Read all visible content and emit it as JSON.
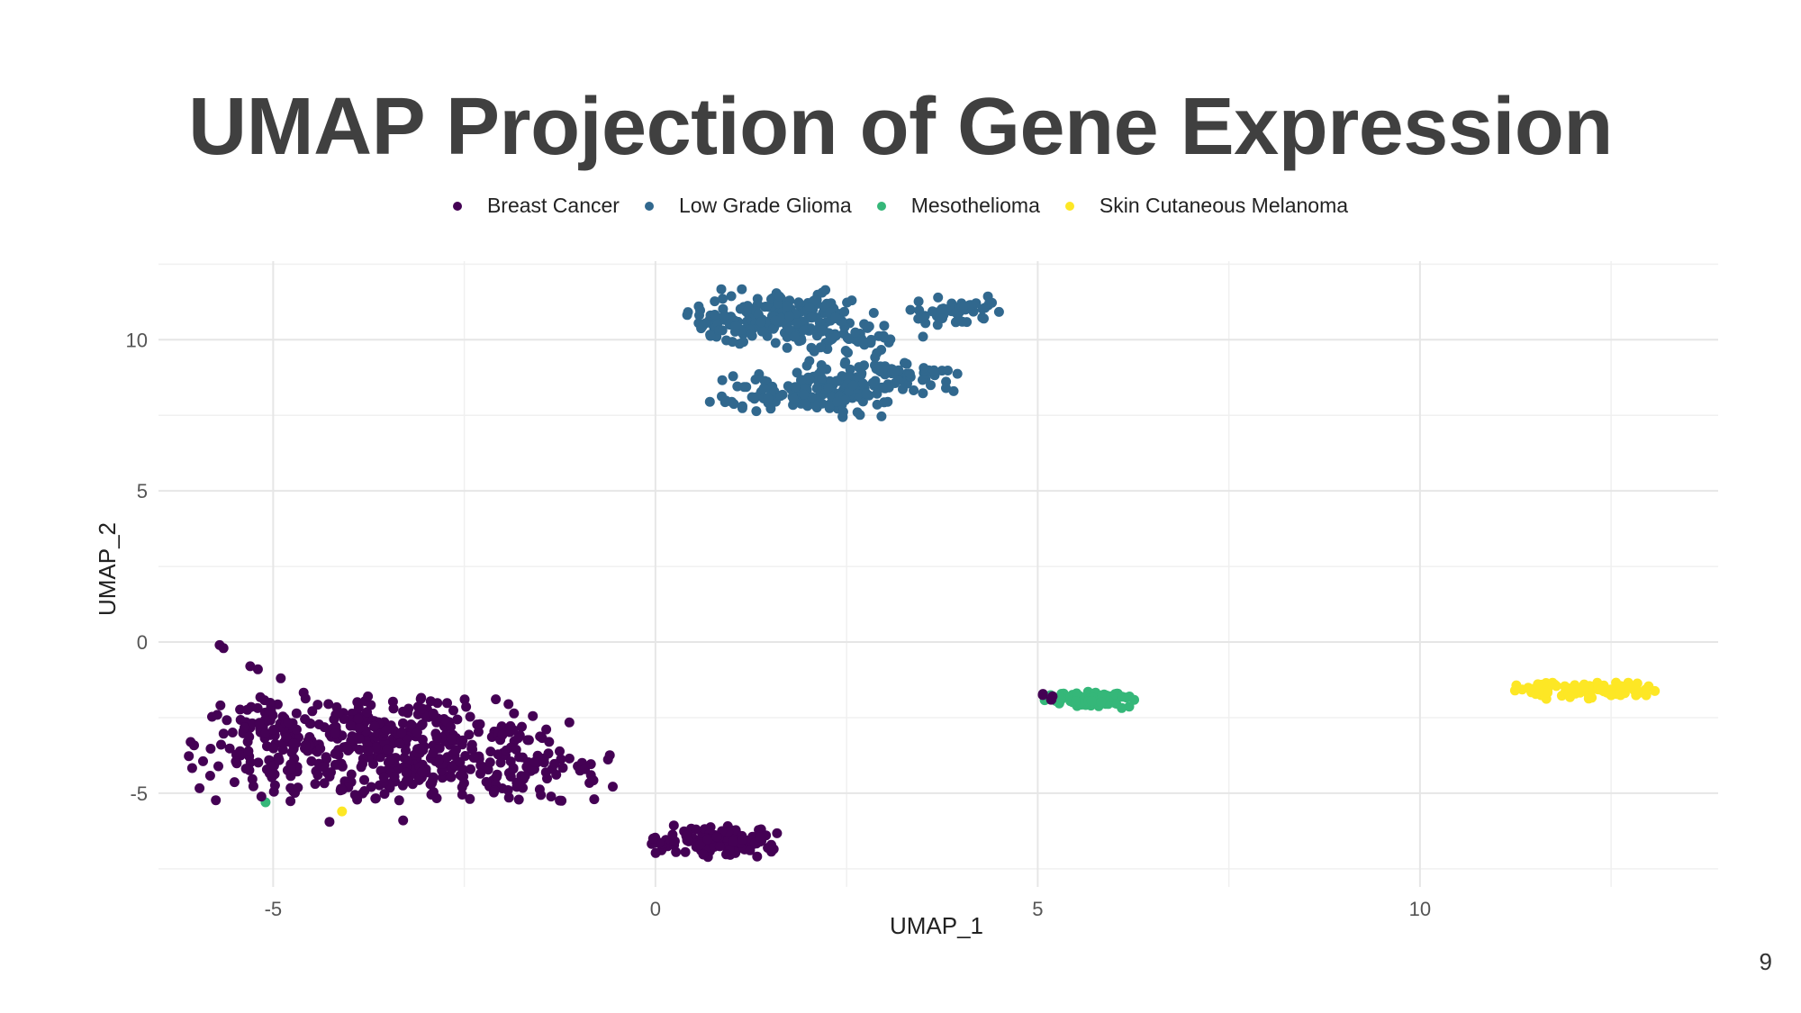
{
  "slide": {
    "title": "UMAP Projection of Gene Expression",
    "page_number": "9"
  },
  "chart_data": {
    "type": "scatter",
    "xlabel": "UMAP_1",
    "ylabel": "UMAP_2",
    "xlim": [
      -6.5,
      13.9
    ],
    "ylim": [
      -8.1,
      12.6
    ],
    "xticks": [
      -5,
      0,
      5,
      10
    ],
    "yticks": [
      -5,
      0,
      5,
      10
    ],
    "grid": true,
    "legend_position": "top",
    "series": [
      {
        "name": "Breast Cancer",
        "color": "#440154",
        "clusters": [
          {
            "cx": -3.6,
            "cy": -3.5,
            "sx": 1.15,
            "sy": 0.85,
            "n": 520
          },
          {
            "cx": -1.4,
            "cy": -4.5,
            "sx": 0.4,
            "sy": 0.35,
            "n": 45
          },
          {
            "cx": -5.0,
            "cy": -2.7,
            "sx": 0.25,
            "sy": 0.25,
            "n": 25
          },
          {
            "cx": 0.8,
            "cy": -6.6,
            "sx": 0.4,
            "sy": 0.25,
            "n": 130
          },
          {
            "cx": 5.1,
            "cy": -1.8,
            "sx": 0.05,
            "sy": 0.08,
            "n": 5
          }
        ],
        "points": [
          {
            "x": -5.7,
            "y": -0.1
          },
          {
            "x": -5.65,
            "y": -0.2
          },
          {
            "x": -5.3,
            "y": -0.8
          },
          {
            "x": -5.2,
            "y": -0.9
          },
          {
            "x": -4.9,
            "y": -1.2
          },
          {
            "x": -0.8,
            "y": -5.2
          },
          {
            "x": -3.3,
            "y": -5.9
          }
        ]
      },
      {
        "name": "Low Grade Glioma",
        "color": "#31688e",
        "clusters": [
          {
            "cx": 1.5,
            "cy": 10.7,
            "sx": 0.5,
            "sy": 0.45,
            "n": 180
          },
          {
            "cx": 2.3,
            "cy": 10.6,
            "sx": 0.4,
            "sy": 0.45,
            "n": 60
          },
          {
            "cx": 1.9,
            "cy": 8.2,
            "sx": 0.55,
            "sy": 0.35,
            "n": 130
          },
          {
            "cx": 2.8,
            "cy": 8.7,
            "sx": 0.45,
            "sy": 0.3,
            "n": 60
          },
          {
            "cx": 3.3,
            "cy": 8.9,
            "sx": 0.3,
            "sy": 0.15,
            "n": 25
          },
          {
            "cx": 2.7,
            "cy": 9.8,
            "sx": 0.25,
            "sy": 0.3,
            "n": 20
          },
          {
            "cx": 3.9,
            "cy": 10.9,
            "sx": 0.3,
            "sy": 0.25,
            "n": 45
          }
        ],
        "points": [
          {
            "x": 3.8,
            "y": 8.4
          },
          {
            "x": 3.9,
            "y": 8.3
          },
          {
            "x": 3.6,
            "y": 8.5
          },
          {
            "x": 0.9,
            "y": 10.8
          },
          {
            "x": 3.5,
            "y": 10.1
          }
        ]
      },
      {
        "name": "Mesothelioma",
        "color": "#35b779",
        "clusters": [
          {
            "cx": 5.7,
            "cy": -1.9,
            "sx": 0.3,
            "sy": 0.13,
            "n": 80
          }
        ],
        "points": [
          {
            "x": 6.2,
            "y": -1.8
          },
          {
            "x": -5.1,
            "y": -5.3
          }
        ]
      },
      {
        "name": "Skin Cutaneous Melanoma",
        "color": "#fde725",
        "clusters": [
          {
            "cx": 12.2,
            "cy": -1.6,
            "sx": 0.45,
            "sy": 0.13,
            "n": 90
          }
        ],
        "points": [
          {
            "x": -4.1,
            "y": -5.6
          }
        ]
      }
    ]
  }
}
